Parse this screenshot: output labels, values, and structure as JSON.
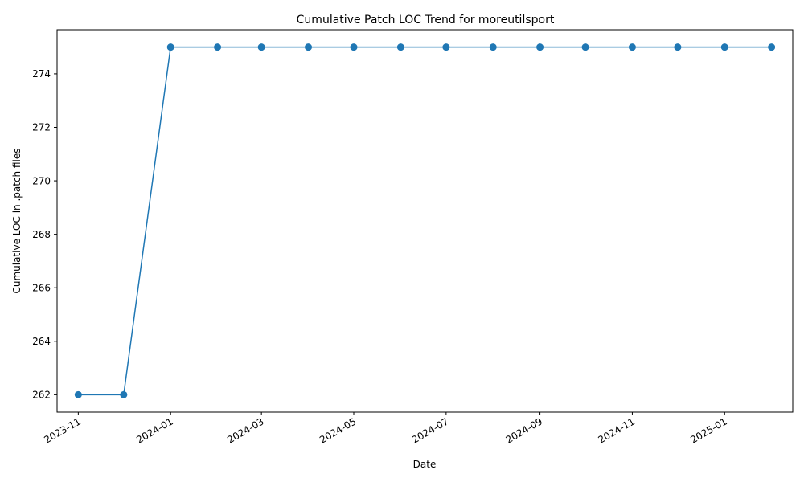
{
  "chart_data": {
    "type": "line",
    "title": "Cumulative Patch LOC Trend for moreutilsport",
    "xlabel": "Date",
    "ylabel": "Cumulative LOC in .patch files",
    "x": [
      "2023-11-01",
      "2023-12-01",
      "2024-01-01",
      "2024-02-01",
      "2024-03-01",
      "2024-04-01",
      "2024-05-01",
      "2024-06-01",
      "2024-07-01",
      "2024-08-01",
      "2024-09-01",
      "2024-10-01",
      "2024-11-01",
      "2024-12-01",
      "2025-01-01",
      "2025-02-01"
    ],
    "series": [
      {
        "values": [
          262,
          262,
          275,
          275,
          275,
          275,
          275,
          275,
          275,
          275,
          275,
          275,
          275,
          275,
          275,
          275
        ],
        "color": "#1f77b4",
        "marker": "circle"
      }
    ],
    "xlim": [
      "2023-10-18",
      "2025-02-15"
    ],
    "ylim": [
      261.35,
      275.65
    ],
    "x_ticks": [
      "2023-11-01",
      "2024-01-01",
      "2024-03-01",
      "2024-05-01",
      "2024-07-01",
      "2024-09-01",
      "2024-11-01",
      "2025-01-01"
    ],
    "x_tick_labels": [
      "2023-11",
      "2024-01",
      "2024-03",
      "2024-05",
      "2024-07",
      "2024-09",
      "2024-11",
      "2025-01"
    ],
    "y_ticks": [
      262,
      264,
      266,
      268,
      270,
      272,
      274
    ],
    "y_tick_labels": [
      "262",
      "264",
      "266",
      "268",
      "270",
      "272",
      "274"
    ],
    "grid": false,
    "legend": false
  }
}
